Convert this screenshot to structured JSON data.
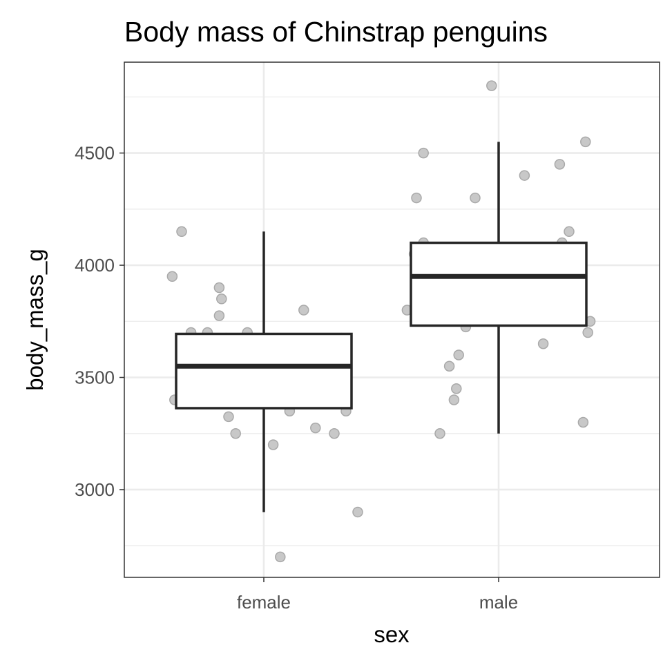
{
  "chart_data": {
    "type": "boxplot",
    "title": "Body mass of Chinstrap penguins",
    "xlabel": "sex",
    "ylabel": "body_mass_g",
    "categories": [
      "female",
      "male"
    ],
    "ylim": [
      2609,
      4905
    ],
    "yticks": [
      3000,
      3500,
      4000,
      4500
    ],
    "yminor": [
      2750,
      3250,
      3750,
      4250,
      4750
    ],
    "grid": true,
    "colors": {
      "point_fill": "#c8c8c8",
      "point_stroke": "#a9a9a9",
      "box": "#262626",
      "grid": "#ebebeb",
      "panel_border": "#333333"
    },
    "boxes": [
      {
        "category": "female",
        "lower_whisker": 2900,
        "q1": 3363,
        "median": 3550,
        "q3": 3694,
        "upper_whisker": 4150
      },
      {
        "category": "male",
        "lower_whisker": 3250,
        "q1": 3731,
        "median": 3950,
        "q3": 4100,
        "upper_whisker": 4550
      }
    ],
    "points": [
      {
        "category": "female",
        "jitter": -0.35,
        "y": 4150
      },
      {
        "category": "female",
        "jitter": -0.39,
        "y": 3950
      },
      {
        "category": "female",
        "jitter": -0.19,
        "y": 3900
      },
      {
        "category": "female",
        "jitter": -0.18,
        "y": 3850
      },
      {
        "category": "female",
        "jitter": -0.19,
        "y": 3775
      },
      {
        "category": "female",
        "jitter": -0.31,
        "y": 3700
      },
      {
        "category": "female",
        "jitter": -0.24,
        "y": 3700
      },
      {
        "category": "female",
        "jitter": -0.07,
        "y": 3700
      },
      {
        "category": "female",
        "jitter": -0.16,
        "y": 3675
      },
      {
        "category": "female",
        "jitter": 0.17,
        "y": 3800
      },
      {
        "category": "female",
        "jitter": 0.33,
        "y": 3675
      },
      {
        "category": "female",
        "jitter": -0.38,
        "y": 3400
      },
      {
        "category": "female",
        "jitter": -0.15,
        "y": 3325
      },
      {
        "category": "female",
        "jitter": -0.12,
        "y": 3250
      },
      {
        "category": "female",
        "jitter": 0.11,
        "y": 3350
      },
      {
        "category": "female",
        "jitter": 0.04,
        "y": 3200
      },
      {
        "category": "female",
        "jitter": 0.22,
        "y": 3275
      },
      {
        "category": "female",
        "jitter": 0.3,
        "y": 3250
      },
      {
        "category": "female",
        "jitter": 0.35,
        "y": 3350
      },
      {
        "category": "female",
        "jitter": 0.4,
        "y": 2900
      },
      {
        "category": "female",
        "jitter": 0.07,
        "y": 2700
      },
      {
        "category": "male",
        "jitter": -0.03,
        "y": 4800
      },
      {
        "category": "male",
        "jitter": -0.32,
        "y": 4500
      },
      {
        "category": "male",
        "jitter": -0.35,
        "y": 4300
      },
      {
        "category": "male",
        "jitter": -0.1,
        "y": 4300
      },
      {
        "category": "male",
        "jitter": 0.11,
        "y": 4400
      },
      {
        "category": "male",
        "jitter": 0.26,
        "y": 4450
      },
      {
        "category": "male",
        "jitter": 0.37,
        "y": 4550
      },
      {
        "category": "male",
        "jitter": 0.3,
        "y": 4150
      },
      {
        "category": "male",
        "jitter": -0.32,
        "y": 4100
      },
      {
        "category": "male",
        "jitter": -0.36,
        "y": 4050
      },
      {
        "category": "male",
        "jitter": 0.27,
        "y": 4100
      },
      {
        "category": "male",
        "jitter": -0.39,
        "y": 3800
      },
      {
        "category": "male",
        "jitter": -0.14,
        "y": 3725
      },
      {
        "category": "male",
        "jitter": 0.39,
        "y": 3750
      },
      {
        "category": "male",
        "jitter": 0.38,
        "y": 3700
      },
      {
        "category": "male",
        "jitter": 0.19,
        "y": 3650
      },
      {
        "category": "male",
        "jitter": -0.17,
        "y": 3600
      },
      {
        "category": "male",
        "jitter": -0.21,
        "y": 3550
      },
      {
        "category": "male",
        "jitter": -0.18,
        "y": 3450
      },
      {
        "category": "male",
        "jitter": -0.19,
        "y": 3400
      },
      {
        "category": "male",
        "jitter": -0.25,
        "y": 3250
      },
      {
        "category": "male",
        "jitter": 0.36,
        "y": 3300
      }
    ]
  }
}
